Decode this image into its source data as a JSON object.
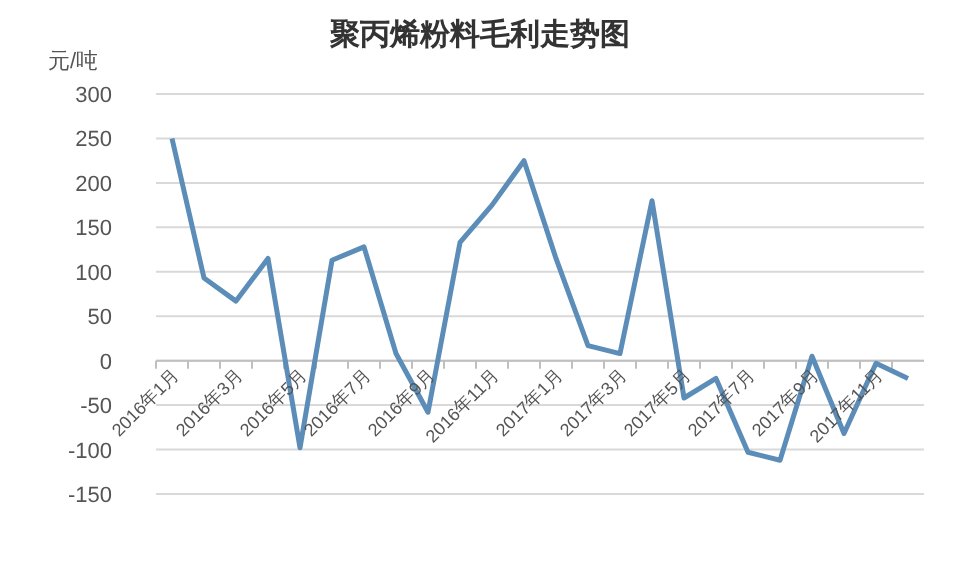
{
  "chart_data": {
    "type": "line",
    "title": "聚丙烯粉料毛利走势图",
    "ylabel": "元/吨",
    "categories": [
      "2016年1月",
      null,
      "2016年3月",
      null,
      "2016年5月",
      null,
      "2016年7月",
      null,
      "2016年9月",
      null,
      "2016年11月",
      null,
      "2017年1月",
      null,
      "2017年3月",
      null,
      "2017年5月",
      null,
      "2017年7月",
      null,
      "2017年9月",
      null,
      "2017年11月",
      null
    ],
    "series": [
      {
        "color": "#5b8db8",
        "values": [
          250,
          93,
          67,
          115,
          -98,
          113,
          128,
          8,
          -58,
          133,
          175,
          225,
          115,
          17,
          8,
          180,
          -42,
          -20,
          -103,
          -112,
          5,
          -82,
          -3,
          -20
        ]
      }
    ],
    "ylim": [
      -150,
      300
    ],
    "yticks": [
      -150,
      -100,
      -50,
      0,
      50,
      100,
      150,
      200,
      250,
      300
    ],
    "grid": "y",
    "marker": "none",
    "line_style": "solid"
  }
}
